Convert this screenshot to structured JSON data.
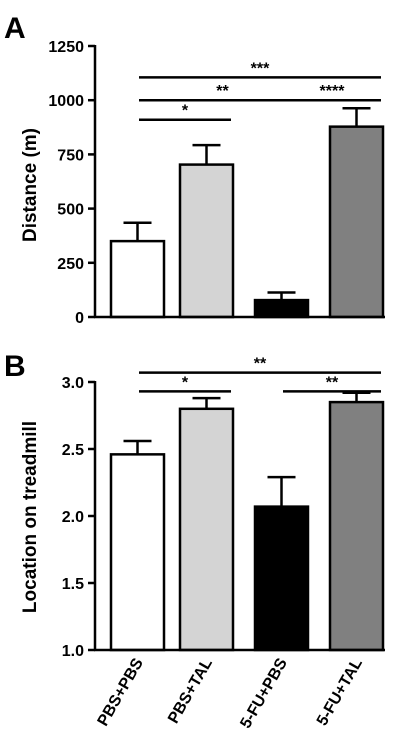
{
  "chart_data": [
    {
      "type": "bar",
      "panel_label": "A",
      "categories": [
        "PBS+PBS",
        "PBS+TAL",
        "5-FU+PBS",
        "5-FU+TAL"
      ],
      "values": [
        350,
        703,
        78,
        878
      ],
      "errors": [
        85,
        90,
        35,
        85
      ],
      "colors": [
        "#ffffff",
        "#d4d4d4",
        "#000000",
        "#808080"
      ],
      "ylabel": "Distance (m)",
      "ylim": [
        0,
        1250
      ],
      "yticks": [
        0,
        250,
        500,
        750,
        1000,
        1250
      ],
      "significance": [
        {
          "from": 0,
          "to": 3,
          "label": "***",
          "y": 1105
        },
        {
          "from": 0,
          "to": 2,
          "label": "**",
          "y": 1000
        },
        {
          "from": 2,
          "to": 3,
          "label": "****",
          "y": 1000
        },
        {
          "from": 0,
          "to": 1,
          "label": "*",
          "y": 910
        }
      ]
    },
    {
      "type": "bar",
      "panel_label": "B",
      "categories": [
        "PBS+PBS",
        "PBS+TAL",
        "5-FU+PBS",
        "5-FU+TAL"
      ],
      "values": [
        2.46,
        2.8,
        2.07,
        2.85
      ],
      "errors": [
        0.1,
        0.08,
        0.22,
        0.07
      ],
      "colors": [
        "#ffffff",
        "#d4d4d4",
        "#000000",
        "#808080"
      ],
      "ylabel": "Location on treadmill",
      "ylim": [
        1.0,
        3.0
      ],
      "yticks": [
        1.0,
        1.5,
        2.0,
        2.5,
        3.0
      ],
      "significance": [
        {
          "from": 0,
          "to": 3,
          "label": "**",
          "y": 3.07
        },
        {
          "from": 0,
          "to": 1,
          "label": "*",
          "y": 2.93
        },
        {
          "from": 2,
          "to": 3,
          "label": "**",
          "y": 2.93
        }
      ]
    }
  ]
}
